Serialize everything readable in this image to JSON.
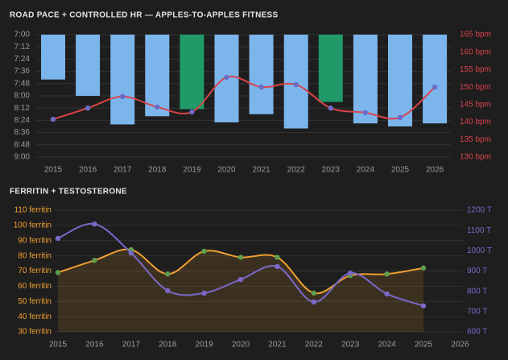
{
  "chart_data": [
    {
      "type": "bar",
      "title": "ROAD PACE + CONTROLLED HR — APPLES-TO-APPLES FITNESS",
      "categories": [
        "2015",
        "2016",
        "2017",
        "2018",
        "2019",
        "2020",
        "2021",
        "2022",
        "2023",
        "2024",
        "2025",
        "2026"
      ],
      "ylim": [
        420,
        540
      ],
      "y_inverted": true,
      "yticks": [
        {
          "value": 420,
          "label": "7:00"
        },
        {
          "value": 432,
          "label": "7:12"
        },
        {
          "value": 444,
          "label": "7:24"
        },
        {
          "value": 456,
          "label": "7:36"
        },
        {
          "value": 468,
          "label": "7:48"
        },
        {
          "value": 480,
          "label": "8:00"
        },
        {
          "value": 492,
          "label": "8:12"
        },
        {
          "value": 504,
          "label": "8:24"
        },
        {
          "value": 516,
          "label": "8:36"
        },
        {
          "value": 528,
          "label": "8:48"
        },
        {
          "value": 540,
          "label": "9:00"
        }
      ],
      "y2lim": [
        130,
        165
      ],
      "y2ticks": [
        {
          "value": 130,
          "label": "130 bpm"
        },
        {
          "value": 135,
          "label": "135 bpm"
        },
        {
          "value": 140,
          "label": "140 bpm"
        },
        {
          "value": 145,
          "label": "145 bpm"
        },
        {
          "value": 150,
          "label": "150 bpm"
        },
        {
          "value": 155,
          "label": "155 bpm"
        },
        {
          "value": 160,
          "label": "160 bpm"
        },
        {
          "value": 165,
          "label": "165 bpm"
        }
      ],
      "grid": true,
      "series": [
        {
          "type": "bar",
          "values": [
            464,
            480,
            508,
            500,
            493,
            506,
            498,
            512,
            486,
            507,
            510,
            507
          ],
          "colors": [
            "#7cb5ec",
            "#7cb5ec",
            "#7cb5ec",
            "#7cb5ec",
            "#1f9a68",
            "#7cb5ec",
            "#7cb5ec",
            "#7cb5ec",
            "#1f9a68",
            "#7cb5ec",
            "#7cb5ec",
            "#7cb5ec"
          ]
        },
        {
          "type": "line",
          "axis": "y2",
          "color": "#d9434a",
          "marker_color": "#6b6bc8",
          "smooth": true,
          "values": [
            140.8,
            144,
            147.3,
            144.3,
            142.9,
            152.8,
            150,
            150.7,
            144,
            142.7,
            141.3,
            150
          ]
        }
      ]
    },
    {
      "type": "line",
      "title": "FERRITIN + TESTOSTERONE",
      "categories": [
        "2015",
        "2016",
        "2017",
        "2018",
        "2019",
        "2020",
        "2021",
        "2022",
        "2023",
        "2024",
        "2025",
        "2026"
      ],
      "ylim": [
        30,
        110
      ],
      "yticks": [
        {
          "value": 30,
          "label": "30 ferritin"
        },
        {
          "value": 40,
          "label": "40 ferritin"
        },
        {
          "value": 50,
          "label": "50 ferritin"
        },
        {
          "value": 60,
          "label": "60 ferritin"
        },
        {
          "value": 70,
          "label": "70 ferritin"
        },
        {
          "value": 80,
          "label": "80 ferritin"
        },
        {
          "value": 90,
          "label": "90 ferritin"
        },
        {
          "value": 100,
          "label": "100 ferritin"
        },
        {
          "value": 110,
          "label": "110 ferritin"
        }
      ],
      "y2lim": [
        600,
        1200
      ],
      "y2ticks": [
        {
          "value": 600,
          "label": "600 T"
        },
        {
          "value": 700,
          "label": "700 T"
        },
        {
          "value": 800,
          "label": "800 T"
        },
        {
          "value": 900,
          "label": "900 T"
        },
        {
          "value": 1000,
          "label": "1000 T"
        },
        {
          "value": 1100,
          "label": "1100 T"
        },
        {
          "value": 1200,
          "label": "1200 T"
        }
      ],
      "grid": true,
      "series": [
        {
          "type": "line",
          "color": "#f0a030",
          "marker_color": "#5f9e4c",
          "fill": true,
          "smooth": true,
          "values": [
            69,
            77,
            84,
            68,
            83,
            79,
            79,
            55.5,
            67,
            68,
            72,
            null
          ]
        },
        {
          "type": "line",
          "axis": "y2",
          "color": "#7b68c8",
          "marker_color": "#7b68c8",
          "smooth": true,
          "values": [
            1061,
            1132,
            989,
            803,
            791,
            858,
            922,
            747,
            890,
            787,
            728,
            null
          ]
        }
      ]
    }
  ]
}
